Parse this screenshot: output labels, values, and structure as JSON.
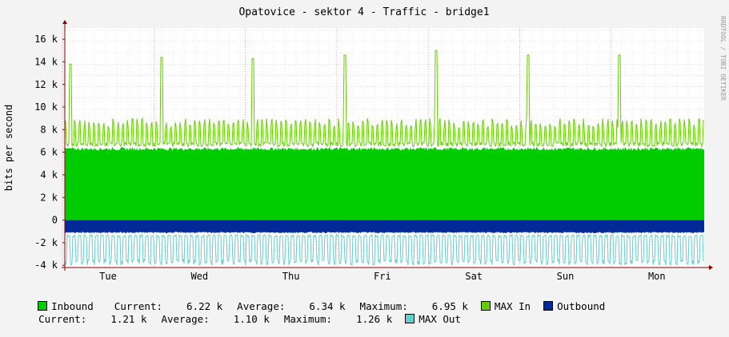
{
  "chart_data": {
    "type": "area",
    "title": "Opatovice - sektor 4 - Traffic - bridge1",
    "ylabel": "bits per second",
    "side_label": "RRDTOOL / TOBI OETIKER",
    "ylim": [
      -4200,
      17000
    ],
    "yticks": [
      {
        "v": 16000,
        "label": "16 k"
      },
      {
        "v": 14000,
        "label": "14 k"
      },
      {
        "v": 12000,
        "label": "12 k"
      },
      {
        "v": 10000,
        "label": "10 k"
      },
      {
        "v": 8000,
        "label": "8 k"
      },
      {
        "v": 6000,
        "label": "6 k"
      },
      {
        "v": 4000,
        "label": "4 k"
      },
      {
        "v": 2000,
        "label": "2 k"
      },
      {
        "v": 0,
        "label": "0"
      },
      {
        "v": -2000,
        "label": "-2 k"
      },
      {
        "v": -4000,
        "label": "-4 k"
      }
    ],
    "xticks": [
      "Tue",
      "Wed",
      "Thu",
      "Fri",
      "Sat",
      "Sun",
      "Mon"
    ],
    "days": 7,
    "series": [
      {
        "name": "Inbound",
        "color": "#00cc00",
        "level": 6300,
        "values_note": "avg"
      },
      {
        "name": "MAX In",
        "color": "#66cc00",
        "base": 6500,
        "peak": 9000,
        "daily_spikes": [
          13800,
          14400,
          14300,
          14600,
          15000,
          14600,
          14600
        ]
      },
      {
        "name": "Outbound",
        "color": "#002a97",
        "level": -1100
      },
      {
        "name": "MAX Out",
        "color": "#66cccc",
        "base": -1300,
        "trough": -4000
      }
    ],
    "grid": true
  },
  "legend": {
    "row1": {
      "inbound_label": "Inbound",
      "current_label": "Current:",
      "current_value": "6.22 k",
      "average_label": "Average:",
      "average_value": "6.34 k",
      "maximum_label": "Maximum:",
      "maximum_value": "6.95 k",
      "max_in_label": "MAX In",
      "outbound_label": "Outbound"
    },
    "row2": {
      "current_label": "Current:",
      "current_value": "1.21 k",
      "average_label": "Average:",
      "average_value": "1.10 k",
      "maximum_label": "Maximum:",
      "maximum_value": "1.26 k",
      "max_out_label": "MAX Out"
    }
  },
  "colors": {
    "inbound": "#00cc00",
    "max_in": "#66cc00",
    "outbound": "#002a97",
    "max_out": "#66cccc",
    "grid_minor": "#e0c8c8",
    "grid_major": "#e07070",
    "axis": "#880000"
  }
}
